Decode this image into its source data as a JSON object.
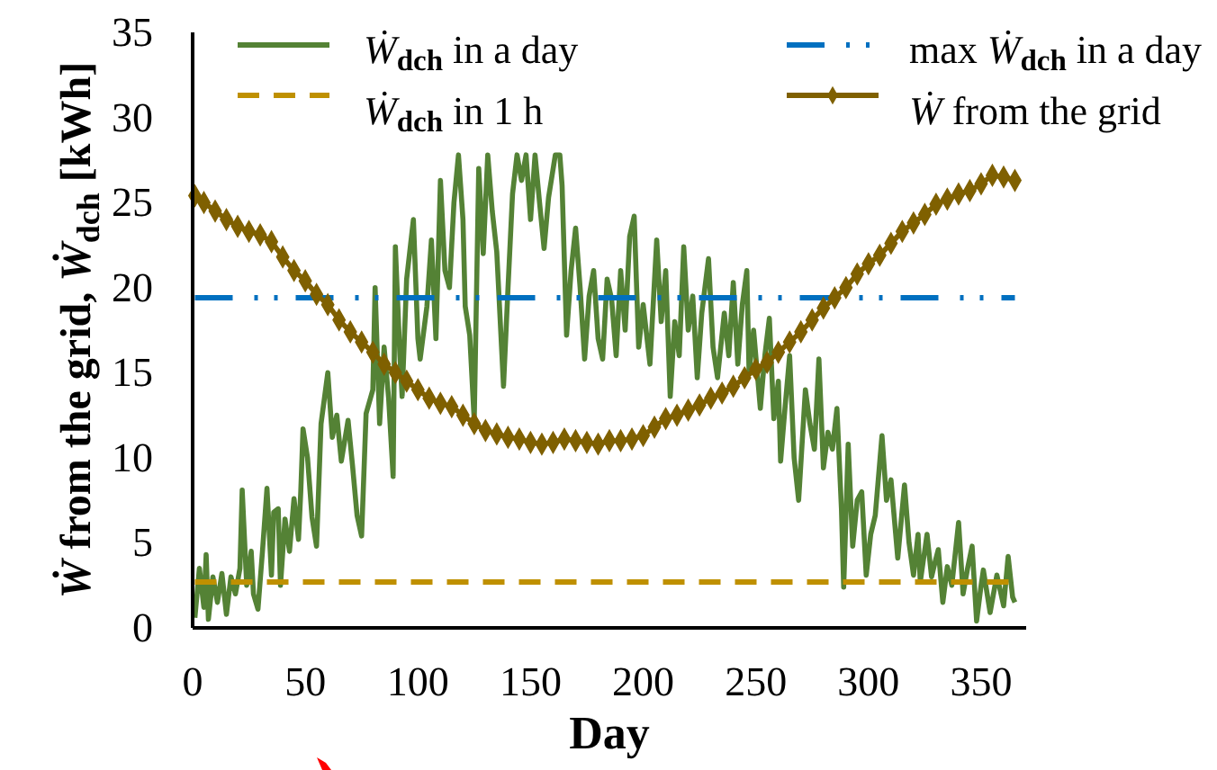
{
  "chart_data": {
    "type": "line",
    "xlabel": "Day",
    "ylabel": "Ẇ from the grid, Ẇ$_{dch}$ [kWh]",
    "xlim": [
      0,
      370
    ],
    "xticks": [
      0,
      50,
      100,
      150,
      200,
      250,
      300,
      350
    ],
    "ylim": [
      0,
      35
    ],
    "yticks": [
      0,
      5,
      10,
      15,
      20,
      25,
      30,
      35
    ],
    "legend": "top",
    "series": [
      {
        "name": "Ẇ$_{dch}$ in a day",
        "color": "#548235",
        "line_style": "solid",
        "marker": "none",
        "x": [
          1,
          3,
          5,
          6,
          7,
          9,
          11,
          13,
          15,
          17,
          19,
          21,
          22,
          24,
          26,
          27,
          29,
          31,
          33,
          35,
          36,
          38,
          39,
          41,
          43,
          45,
          47,
          48,
          49,
          51,
          53,
          55,
          57,
          60,
          62,
          64,
          66,
          69,
          71,
          73,
          75,
          77,
          80,
          81,
          83,
          85,
          87,
          89,
          90,
          92,
          93,
          95,
          98,
          100,
          101,
          104,
          106,
          108,
          110,
          112,
          114,
          116,
          118,
          120,
          121,
          123,
          125,
          127,
          129,
          131,
          133,
          135,
          138,
          140,
          142,
          144,
          146,
          148,
          150,
          152,
          154,
          156,
          158,
          161,
          163,
          164,
          166,
          168,
          170,
          172,
          174,
          176,
          178,
          180,
          182,
          184,
          186,
          188,
          190,
          192,
          194,
          196,
          198,
          200,
          203,
          206,
          208,
          210,
          212,
          214,
          216,
          218,
          220,
          222,
          224,
          226,
          229,
          231,
          233,
          236,
          238,
          240,
          242,
          244,
          246,
          247,
          249,
          252,
          254,
          256,
          258,
          260,
          261,
          263,
          265,
          267,
          269,
          272,
          274,
          276,
          278,
          280,
          282,
          284,
          286,
          288,
          289,
          291,
          293,
          295,
          297,
          299,
          301,
          303,
          306,
          308,
          310,
          313,
          316,
          318,
          320,
          322,
          323,
          326,
          328,
          330,
          331,
          333,
          335,
          337,
          340,
          342,
          344,
          346,
          348,
          350,
          351,
          354,
          357,
          360,
          362,
          364,
          365
        ],
        "values": [
          0.6,
          3.5,
          1.2,
          4.3,
          0.5,
          3.0,
          1.5,
          3.2,
          0.8,
          3.0,
          2.0,
          3.5,
          8.1,
          2.5,
          4.5,
          2.0,
          1.1,
          4.5,
          8.2,
          3.1,
          6.8,
          7.0,
          2.5,
          6.4,
          4.5,
          7.6,
          5.2,
          8.0,
          11.7,
          10.0,
          6.5,
          4.8,
          12.0,
          15.0,
          11.2,
          12.5,
          9.8,
          12.2,
          9.5,
          6.6,
          5.4,
          12.6,
          14.0,
          20.0,
          12.0,
          16.5,
          13.5,
          8.9,
          22.4,
          16.0,
          13.6,
          20.5,
          24.0,
          17.0,
          15.8,
          18.9,
          22.8,
          17.0,
          26.3,
          21.0,
          20.0,
          25.0,
          27.8,
          24.0,
          18.9,
          17.2,
          12.2,
          27.0,
          22.0,
          27.8,
          24.5,
          22.1,
          14.2,
          20.0,
          25.5,
          27.8,
          26.3,
          27.8,
          24.0,
          27.8,
          25.0,
          22.3,
          25.3,
          27.8,
          27.8,
          26.0,
          17.2,
          21.0,
          23.5,
          20.0,
          15.8,
          19.5,
          21.0,
          17.0,
          15.8,
          20.5,
          19.3,
          16.0,
          21.0,
          17.5,
          23.0,
          24.2,
          16.5,
          19.0,
          15.5,
          22.8,
          18.0,
          21.0,
          13.6,
          18.0,
          16.0,
          22.4,
          17.5,
          19.5,
          14.7,
          18.5,
          21.7,
          16.5,
          14.7,
          18.5,
          16.0,
          20.3,
          15.5,
          19.0,
          21.0,
          15.0,
          17.5,
          12.9,
          16.0,
          18.2,
          12.3,
          14.5,
          9.8,
          13.0,
          16.0,
          10.0,
          7.5,
          14.0,
          12.0,
          10.5,
          15.8,
          9.4,
          11.5,
          10.5,
          12.9,
          7.0,
          2.4,
          10.8,
          4.8,
          7.5,
          8.0,
          3.1,
          5.5,
          6.6,
          11.3,
          7.5,
          8.7,
          4.1,
          8.4,
          5.0,
          3.1,
          5.5,
          2.7,
          5.5,
          3.0,
          4.1,
          4.6,
          1.5,
          3.6,
          2.5,
          6.2,
          2.0,
          3.5,
          4.8,
          0.4,
          2.5,
          3.4,
          0.9,
          3.1,
          1.3,
          4.2,
          1.8,
          1.5
        ]
      },
      {
        "name": "max Ẇ$_{dch}$ in a day",
        "color": "#0070c0",
        "line_style": "dashdot",
        "marker": "none",
        "x": [
          1,
          365
        ],
        "values": [
          19.4,
          19.4
        ]
      },
      {
        "name": "Ẇ$_{dch}$ in 1 h",
        "color": "#bf9000",
        "line_style": "dashed",
        "marker": "none",
        "x": [
          1,
          365
        ],
        "values": [
          2.7,
          2.7
        ]
      },
      {
        "name": "Ẇ from the grid",
        "color": "#7f6000",
        "line_style": "solid",
        "marker": "diamond",
        "x": [
          1,
          5,
          10,
          15,
          20,
          25,
          30,
          35,
          40,
          45,
          50,
          55,
          60,
          65,
          70,
          75,
          80,
          85,
          90,
          95,
          100,
          105,
          110,
          115,
          120,
          125,
          130,
          135,
          140,
          145,
          150,
          155,
          160,
          165,
          170,
          175,
          180,
          185,
          190,
          195,
          200,
          205,
          210,
          215,
          220,
          225,
          230,
          235,
          240,
          245,
          250,
          255,
          260,
          265,
          270,
          275,
          280,
          285,
          290,
          295,
          300,
          305,
          310,
          315,
          320,
          325,
          330,
          335,
          340,
          345,
          350,
          355,
          360,
          365
        ],
        "values": [
          25.4,
          25.0,
          24.5,
          24.0,
          23.6,
          23.3,
          23.1,
          22.7,
          21.8,
          21.0,
          20.4,
          19.6,
          19.0,
          18.1,
          17.4,
          16.8,
          16.2,
          15.5,
          15.0,
          14.5,
          14.0,
          13.5,
          13.2,
          13.0,
          12.5,
          12.0,
          11.6,
          11.4,
          11.2,
          11.1,
          10.9,
          10.8,
          10.9,
          11.1,
          11.0,
          10.9,
          10.8,
          11.0,
          11.0,
          11.1,
          11.3,
          11.8,
          12.3,
          12.5,
          12.8,
          13.1,
          13.5,
          13.8,
          14.2,
          14.7,
          15.2,
          15.6,
          16.2,
          16.8,
          17.4,
          18.1,
          18.8,
          19.4,
          20.0,
          20.8,
          21.4,
          21.9,
          22.6,
          23.3,
          23.8,
          24.3,
          24.9,
          25.2,
          25.5,
          25.7,
          26.1,
          26.6,
          26.5,
          26.3
        ]
      }
    ]
  }
}
